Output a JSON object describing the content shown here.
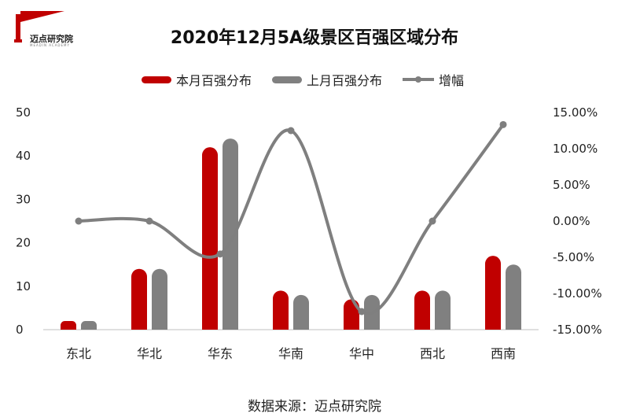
{
  "brand": {
    "name": "迈点研究院",
    "sub": "MEADIN ACADEMY"
  },
  "chart_data": {
    "type": "bar",
    "title": "2020年12月5A级景区百强区域分布",
    "categories": [
      "东北",
      "华北",
      "华东",
      "华南",
      "华中",
      "西北",
      "西南"
    ],
    "series": [
      {
        "name": "本月百强分布",
        "kind": "bar",
        "axis": "left",
        "color": "#c00000",
        "values": [
          2,
          14,
          42,
          9,
          7,
          9,
          17
        ]
      },
      {
        "name": "上月百强分布",
        "kind": "bar",
        "axis": "left",
        "color": "#808080",
        "values": [
          2,
          14,
          44,
          8,
          8,
          9,
          15
        ]
      },
      {
        "name": "增幅",
        "kind": "line",
        "axis": "right",
        "color": "#7f7f7f",
        "values": [
          0.0,
          0.0,
          -4.55,
          12.5,
          -12.5,
          0.0,
          13.33
        ]
      }
    ],
    "left_axis": {
      "min": 0,
      "max": 50,
      "step": 10,
      "ticks": [
        "0",
        "10",
        "20",
        "30",
        "40",
        "50"
      ]
    },
    "right_axis": {
      "min": -15,
      "max": 15,
      "step": 5,
      "ticks": [
        "-15.00%",
        "-10.00%",
        "-5.00%",
        "0.00%",
        "5.00%",
        "10.00%",
        "15.00%"
      ]
    },
    "grid": false,
    "legend_position": "top"
  },
  "source_note": "数据来源：迈点研究院"
}
